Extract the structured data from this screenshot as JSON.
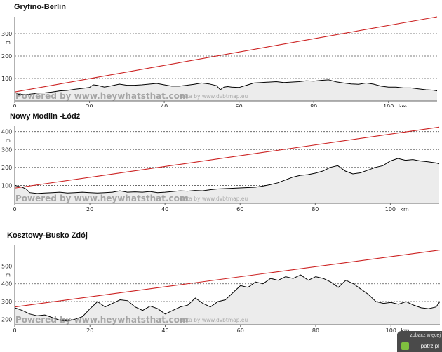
{
  "chart_data": [
    {
      "type": "area",
      "title": "Gryfino-Berlin",
      "unit_label": "m",
      "x_unit_label": "km",
      "xlim": [
        0,
        113
      ],
      "ylim": [
        0,
        375
      ],
      "x_ticks": [
        0,
        20,
        40,
        60,
        80,
        100
      ],
      "y_ticks": [
        100,
        200,
        300
      ],
      "grid": true,
      "watermark": "Powered by www.heywhatsthat.com",
      "watermark_sub": "data by www.dvbtmap.eu",
      "series": [
        {
          "role": "elevation",
          "x": [
            0,
            1,
            3,
            5,
            6,
            8,
            10,
            12,
            14,
            16,
            18,
            20,
            21,
            22,
            24,
            26,
            28,
            30,
            32,
            34,
            36,
            38,
            40,
            42,
            44,
            46,
            48,
            50,
            52,
            54,
            55,
            56,
            57,
            58,
            60,
            62,
            64,
            66,
            68,
            70,
            72,
            74,
            76,
            78,
            80,
            82,
            84,
            86,
            88,
            90,
            92,
            94,
            96,
            98,
            100,
            102,
            104,
            106,
            108,
            110,
            112,
            113
          ],
          "y": [
            38,
            30,
            28,
            32,
            35,
            36,
            40,
            45,
            47,
            52,
            56,
            60,
            72,
            70,
            62,
            68,
            75,
            70,
            70,
            72,
            75,
            78,
            72,
            66,
            66,
            70,
            74,
            80,
            76,
            68,
            50,
            62,
            64,
            62,
            60,
            70,
            80,
            82,
            84,
            86,
            82,
            84,
            86,
            90,
            88,
            92,
            94,
            85,
            80,
            76,
            74,
            80,
            75,
            66,
            62,
            62,
            58,
            58,
            54,
            50,
            48,
            45
          ]
        },
        {
          "role": "line-of-sight",
          "x": [
            0,
            113
          ],
          "y": [
            40,
            375
          ]
        }
      ]
    },
    {
      "type": "area",
      "title": "Nowy Modlin -Łódź",
      "unit_label": "m",
      "x_unit_label": "km",
      "xlim": [
        0,
        113
      ],
      "ylim": [
        0,
        430
      ],
      "x_ticks": [
        0,
        20,
        40,
        60,
        80,
        100
      ],
      "y_ticks": [
        100,
        200,
        300,
        400
      ],
      "grid": true,
      "watermark": "Powered by www.heywhatsthat.com",
      "watermark_sub": "data by www.dvbtmap.eu",
      "series": [
        {
          "role": "elevation",
          "x": [
            0,
            1,
            2,
            3,
            4,
            6,
            8,
            10,
            12,
            14,
            16,
            18,
            20,
            22,
            24,
            26,
            28,
            30,
            32,
            34,
            36,
            38,
            40,
            42,
            44,
            46,
            48,
            50,
            52,
            54,
            56,
            58,
            60,
            62,
            64,
            66,
            68,
            70,
            72,
            74,
            76,
            78,
            80,
            82,
            84,
            86,
            88,
            90,
            92,
            94,
            96,
            98,
            100,
            102,
            104,
            106,
            108,
            110,
            112,
            113
          ],
          "y": [
            100,
            95,
            90,
            80,
            60,
            55,
            58,
            60,
            62,
            58,
            60,
            62,
            60,
            58,
            60,
            62,
            70,
            62,
            64,
            62,
            66,
            60,
            62,
            66,
            70,
            68,
            72,
            70,
            76,
            80,
            82,
            84,
            86,
            88,
            90,
            96,
            104,
            114,
            130,
            146,
            156,
            160,
            168,
            180,
            200,
            210,
            180,
            164,
            170,
            185,
            200,
            210,
            236,
            250,
            240,
            244,
            236,
            232,
            226,
            220
          ]
        },
        {
          "role": "line-of-sight",
          "x": [
            0,
            113
          ],
          "y": [
            85,
            425
          ]
        }
      ]
    },
    {
      "type": "area",
      "title": "Kosztowy-Busko Zdój",
      "unit_label": "m",
      "x_unit_label": "km",
      "xlim": [
        0,
        113
      ],
      "ylim": [
        170,
        620
      ],
      "x_ticks": [
        0,
        20,
        40,
        60,
        80,
        100
      ],
      "y_ticks": [
        200,
        300,
        400,
        500
      ],
      "grid": true,
      "watermark": "Powered by www.heywhatsthat.com",
      "watermark_sub": "data by www.dvbtmap.eu",
      "series": [
        {
          "role": "elevation",
          "x": [
            0,
            2,
            4,
            6,
            8,
            10,
            12,
            14,
            16,
            18,
            20,
            22,
            24,
            26,
            28,
            30,
            32,
            34,
            36,
            38,
            40,
            42,
            44,
            46,
            48,
            50,
            52,
            54,
            56,
            58,
            60,
            62,
            64,
            66,
            68,
            70,
            72,
            74,
            76,
            78,
            80,
            82,
            84,
            86,
            88,
            90,
            92,
            94,
            96,
            98,
            100,
            102,
            104,
            106,
            108,
            110,
            112,
            113
          ],
          "y": [
            265,
            250,
            230,
            220,
            225,
            210,
            195,
            190,
            200,
            215,
            260,
            300,
            270,
            290,
            310,
            305,
            270,
            250,
            275,
            260,
            230,
            250,
            270,
            280,
            320,
            290,
            270,
            300,
            310,
            350,
            390,
            380,
            410,
            400,
            430,
            420,
            440,
            430,
            450,
            420,
            440,
            430,
            410,
            380,
            420,
            400,
            370,
            340,
            300,
            290,
            295,
            285,
            300,
            280,
            265,
            260,
            270,
            300
          ]
        },
        {
          "role": "line-of-sight",
          "x": [
            0,
            113
          ],
          "y": [
            270,
            590
          ]
        }
      ]
    }
  ],
  "colors": {
    "terrain_fill": "#ececec",
    "terrain_line": "#000000",
    "sight_line": "#cc2222",
    "grid": "#555555",
    "axis": "#666666"
  },
  "badge": {
    "text": "zobacz więcej",
    "logo": "patrz.pl"
  }
}
